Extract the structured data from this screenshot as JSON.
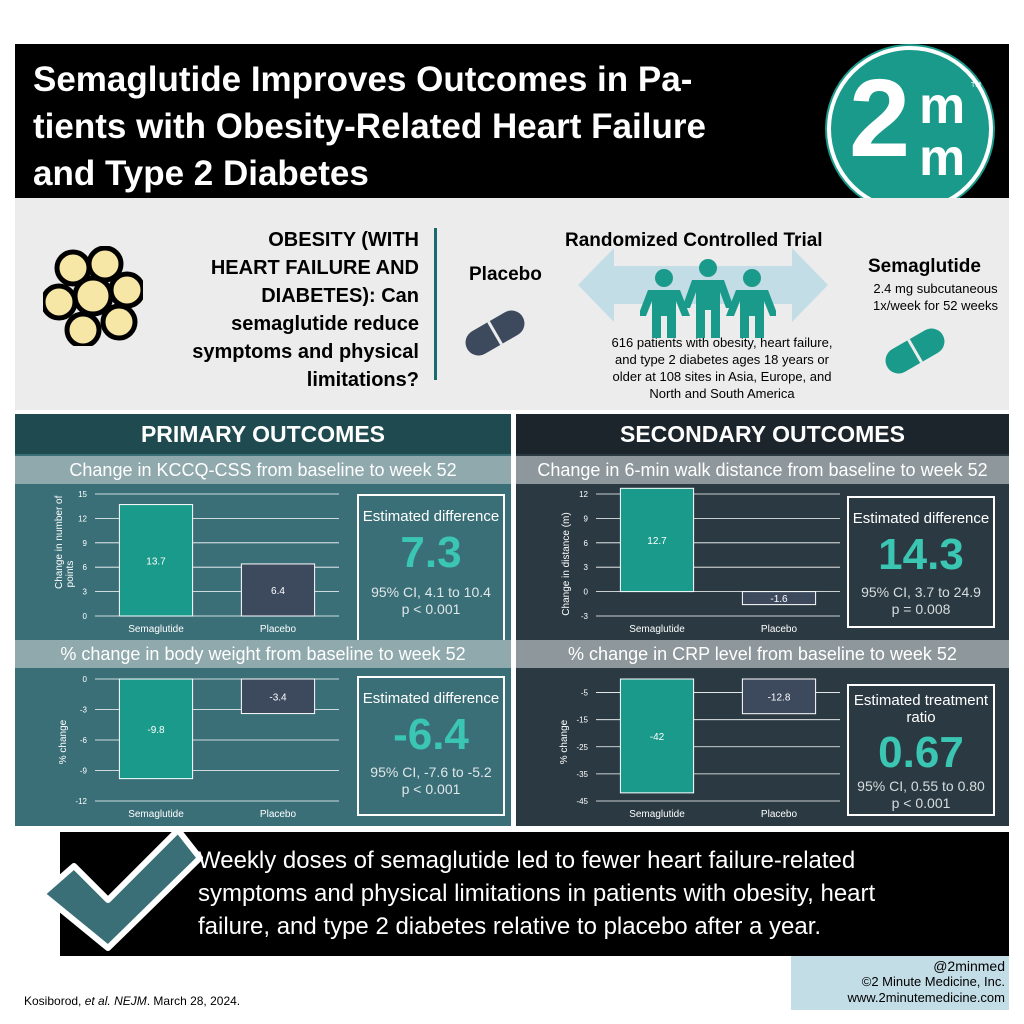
{
  "header": {
    "title": "Semaglutide Improves Outcomes in Patients with Obesity-Related Heart Failure and Type 2 Diabetes",
    "title_line1": "Semaglutide Improves Outcomes in Pa-",
    "title_line2": "tients with Obesity-Related Heart Failure",
    "title_line3": "and Type 2 Diabetes",
    "logo": {
      "two": "2",
      "m_top": "m",
      "m_bottom": "m",
      "tm": "TM"
    }
  },
  "study": {
    "question_bold": "OBESITY (WITH HEART FAILURE AND DIABETES):",
    "question_line1": "OBESITY (WITH",
    "question_line2": "HEART FAILURE AND",
    "question_line3": "DIABETES): Can",
    "question_line4": "semaglutide reduce",
    "question_line5": "symptoms and physical",
    "question_line6": "limitations?",
    "trial_title": "Randomized Controlled Trial",
    "placebo_label": "Placebo",
    "semaglutide_label": "Semaglutide",
    "dose_line1": "2.4 mg subcutaneous",
    "dose_line2": "1x/week for 52 weeks",
    "patients_line1": "616 patients with obesity, heart failure,",
    "patients_line2": "and type 2 diabetes ages 18 years or",
    "patients_line3": "older at 108 sites in Asia, Europe, and",
    "patients_line4": "North and South America"
  },
  "primary": {
    "heading": "PRIMARY OUTCOMES",
    "kccq": {
      "subhead": "Change in KCCQ-CSS from baseline to week 52",
      "ylabel_line1": "Change in number of",
      "ylabel_line2": "points",
      "box_label": "Estimated difference",
      "box_value": "7.3",
      "box_ci": "95% CI, 4.1 to 10.4",
      "box_p": "p < 0.001"
    },
    "weight": {
      "subhead": "% change in body weight from baseline to week 52",
      "ylabel": "% change",
      "box_label": "Estimated difference",
      "box_value": "-6.4",
      "box_ci": "95% CI, -7.6 to -5.2",
      "box_p": "p < 0.001"
    }
  },
  "secondary": {
    "heading": "SECONDARY OUTCOMES",
    "walk": {
      "subhead": "Change in 6-min walk distance from baseline to week 52",
      "ylabel": "Change in distance (m)",
      "box_label": "Estimated difference",
      "box_value": "14.3",
      "box_ci": "95% CI, 3.7 to 24.9",
      "box_p": "p = 0.008"
    },
    "crp": {
      "subhead": "% change in CRP level from baseline to week 52",
      "ylabel": "% change",
      "box_label_line1": "Estimated treatment",
      "box_label_line2": "ratio",
      "box_value": "0.67",
      "box_ci": "95% CI, 0.55 to 0.80",
      "box_p": "p < 0.001"
    }
  },
  "chart_data": [
    {
      "type": "bar",
      "categories": [
        "Semaglutide",
        "Placebo"
      ],
      "values": [
        13.7,
        6.4
      ],
      "value_labels": [
        "13.7",
        "6.4"
      ],
      "ylabel": "Change in number of points",
      "ylim": [
        0,
        15
      ],
      "yticks": [
        0,
        3,
        6,
        9,
        12,
        15
      ],
      "colors": [
        "#1a9a8a",
        "#3d4a5e"
      ]
    },
    {
      "type": "bar",
      "categories": [
        "Semaglutide",
        "Placebo"
      ],
      "values": [
        -9.8,
        -3.4
      ],
      "value_labels": [
        "-9.8",
        "-3.4"
      ],
      "ylabel": "% change",
      "ylim": [
        -12,
        0
      ],
      "yticks": [
        0,
        -3,
        -6,
        -9,
        -12
      ],
      "colors": [
        "#1a9a8a",
        "#3d4a5e"
      ]
    },
    {
      "type": "bar",
      "categories": [
        "Semaglutide",
        "Placebo"
      ],
      "values": [
        12.7,
        -1.6
      ],
      "value_labels": [
        "12.7",
        "-1.6"
      ],
      "ylabel": "Change in distance (m)",
      "ylim": [
        -3,
        12
      ],
      "yticks": [
        12,
        9,
        6,
        3,
        0,
        -3
      ],
      "colors": [
        "#1a9a8a",
        "#3d4a5e"
      ]
    },
    {
      "type": "bar",
      "categories": [
        "Semaglutide",
        "Placebo"
      ],
      "values": [
        -42,
        -12.8
      ],
      "value_labels": [
        "-42",
        "-12.8"
      ],
      "ylabel": "% change",
      "ylim": [
        -45,
        0
      ],
      "yticks": [
        -5,
        -15,
        -25,
        -35,
        -45
      ],
      "colors": [
        "#1a9a8a",
        "#3d4a5e"
      ]
    }
  ],
  "conclusion": {
    "line1": "Weekly doses of semaglutide led to fewer heart failure-related",
    "line2": "symptoms and physical limitations in patients with obesity, heart",
    "line3": "failure, and type 2 diabetes relative to placebo after a year."
  },
  "footer": {
    "citation_author": "Kosiborod, ",
    "citation_etal": "et al.",
    "citation_journal": "NEJM",
    "citation_date": ". March 28, 2024.",
    "handle": "@2minmed",
    "copyright": "©2 Minute Medicine, Inc.",
    "website": "www.2minutemedicine.com"
  },
  "colors": {
    "accent_teal": "#1a9a8a",
    "primary_panel": "#3a6f78",
    "secondary_panel": "#2b3a42",
    "placebo_bar": "#3d4a5e"
  }
}
